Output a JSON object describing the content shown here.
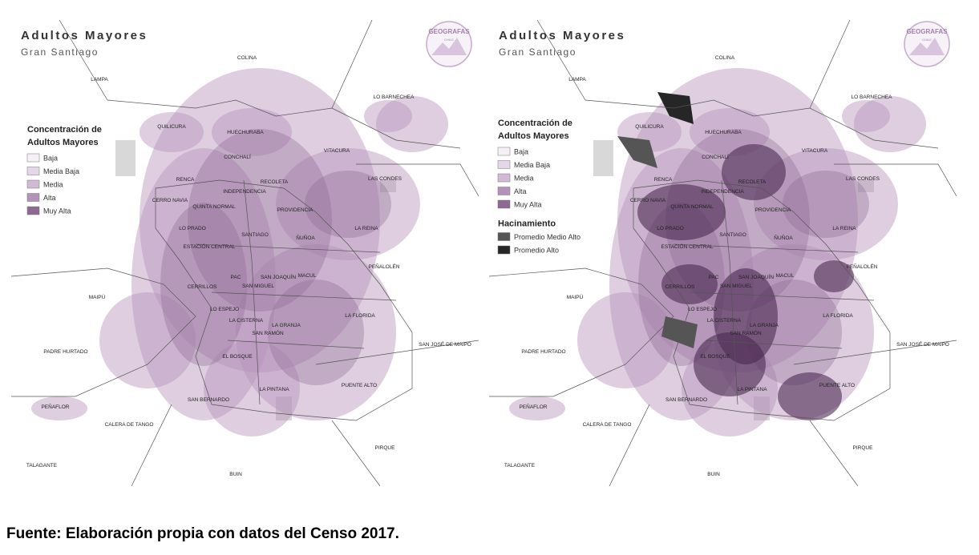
{
  "maps": [
    {
      "title": "Adultos Mayores",
      "subtitle": "Gran Santiago",
      "logo": [
        "GEOGRAFAS",
        "CHILE"
      ],
      "legend_title": [
        "Concentración de",
        "Adultos Mayores"
      ],
      "legend": [
        {
          "label": "Baja",
          "color": "#f5f0f6"
        },
        {
          "label": "Media Baja",
          "color": "#e6d6e9"
        },
        {
          "label": "Media",
          "color": "#d2b9d6"
        },
        {
          "label": "Alta",
          "color": "#b592bb"
        },
        {
          "label": "Muy Alta",
          "color": "#8d6993"
        }
      ],
      "communes": [
        "COLINA",
        "LAMPA",
        "LO BARNECHEA",
        "QUILICURA",
        "HUECHURABA",
        "VITACURA",
        "CONCHALÍ",
        "LAS CONDES",
        "RENCA",
        "RECOLETA",
        "INDEPENDENCIA",
        "CERRO NAVIA",
        "QUINTA NORMAL",
        "PROVIDENCIA",
        "LO PRADO",
        "SANTIAGO",
        "ÑUÑOA",
        "LA REINA",
        "ESTACIÓN CENTRAL",
        "PEÑALOLÉN",
        "PAC",
        "SAN JOAQUÍN",
        "MACUL",
        "SAN MIGUEL",
        "CERRILLOS",
        "MAIPÚ",
        "LO ESPEJO",
        "LA CISTERNA",
        "LA GRANJA",
        "LA FLORIDA",
        "SAN RAMÓN",
        "SAN JOSÉ DE MAIPO",
        "PADRE HURTADO",
        "EL BOSQUE",
        "PUENTE ALTO",
        "LA PINTANA",
        "SAN BERNARDO",
        "PEÑAFLOR",
        "CALERA DE TANGO",
        "PIRQUE",
        "TALAGANTE",
        "BUIN"
      ]
    },
    {
      "title": "Adultos Mayores",
      "subtitle": "Gran Santiago",
      "logo": [
        "GEOGRAFAS",
        "CHILE"
      ],
      "legend_title": [
        "Concentración de",
        "Adultos Mayores"
      ],
      "legend": [
        {
          "label": "Baja",
          "color": "#f5f0f6"
        },
        {
          "label": "Media Baja",
          "color": "#e6d6e9"
        },
        {
          "label": "Media",
          "color": "#d2b9d6"
        },
        {
          "label": "Alta",
          "color": "#b592bb"
        },
        {
          "label": "Muy Alta",
          "color": "#8d6993"
        }
      ],
      "legend2_title": "Hacinamiento",
      "legend2": [
        {
          "label": "Promedio Medio Alto",
          "color": "#555555"
        },
        {
          "label": "Promedio Alto",
          "color": "#262626"
        }
      ],
      "communes": [
        "COLINA",
        "LAMPA",
        "LO BARNECHEA",
        "QUILICURA",
        "HUECHURABA",
        "VITACURA",
        "CONCHALÍ",
        "LAS CONDES",
        "RENCA",
        "RECOLETA",
        "INDEPENDENCIA",
        "CERRO NAVIA",
        "QUINTA NORMAL",
        "PROVIDENCIA",
        "LO PRADO",
        "SANTIAGO",
        "ÑUÑOA",
        "LA REINA",
        "ESTACIÓN CENTRAL",
        "PEÑALOLÉN",
        "PAC",
        "SAN JOAQUÍN",
        "MACUL",
        "SAN MIGUEL",
        "CERRILLOS",
        "MAIPÚ",
        "LO ESPEJO",
        "LA CISTERNA",
        "LA GRANJA",
        "LA FLORIDA",
        "SAN RAMÓN",
        "SAN JOSÉ DE MAIPO",
        "PADRE HURTADO",
        "EL BOSQUE",
        "PUENTE ALTO",
        "LA PINTANA",
        "SAN BERNARDO",
        "PEÑAFLOR",
        "CALERA DE TANGO",
        "PIRQUE",
        "TALAGANTE",
        "BUIN"
      ]
    }
  ],
  "caption": "Fuente: Elaboración propia con datos del Censo 2017."
}
